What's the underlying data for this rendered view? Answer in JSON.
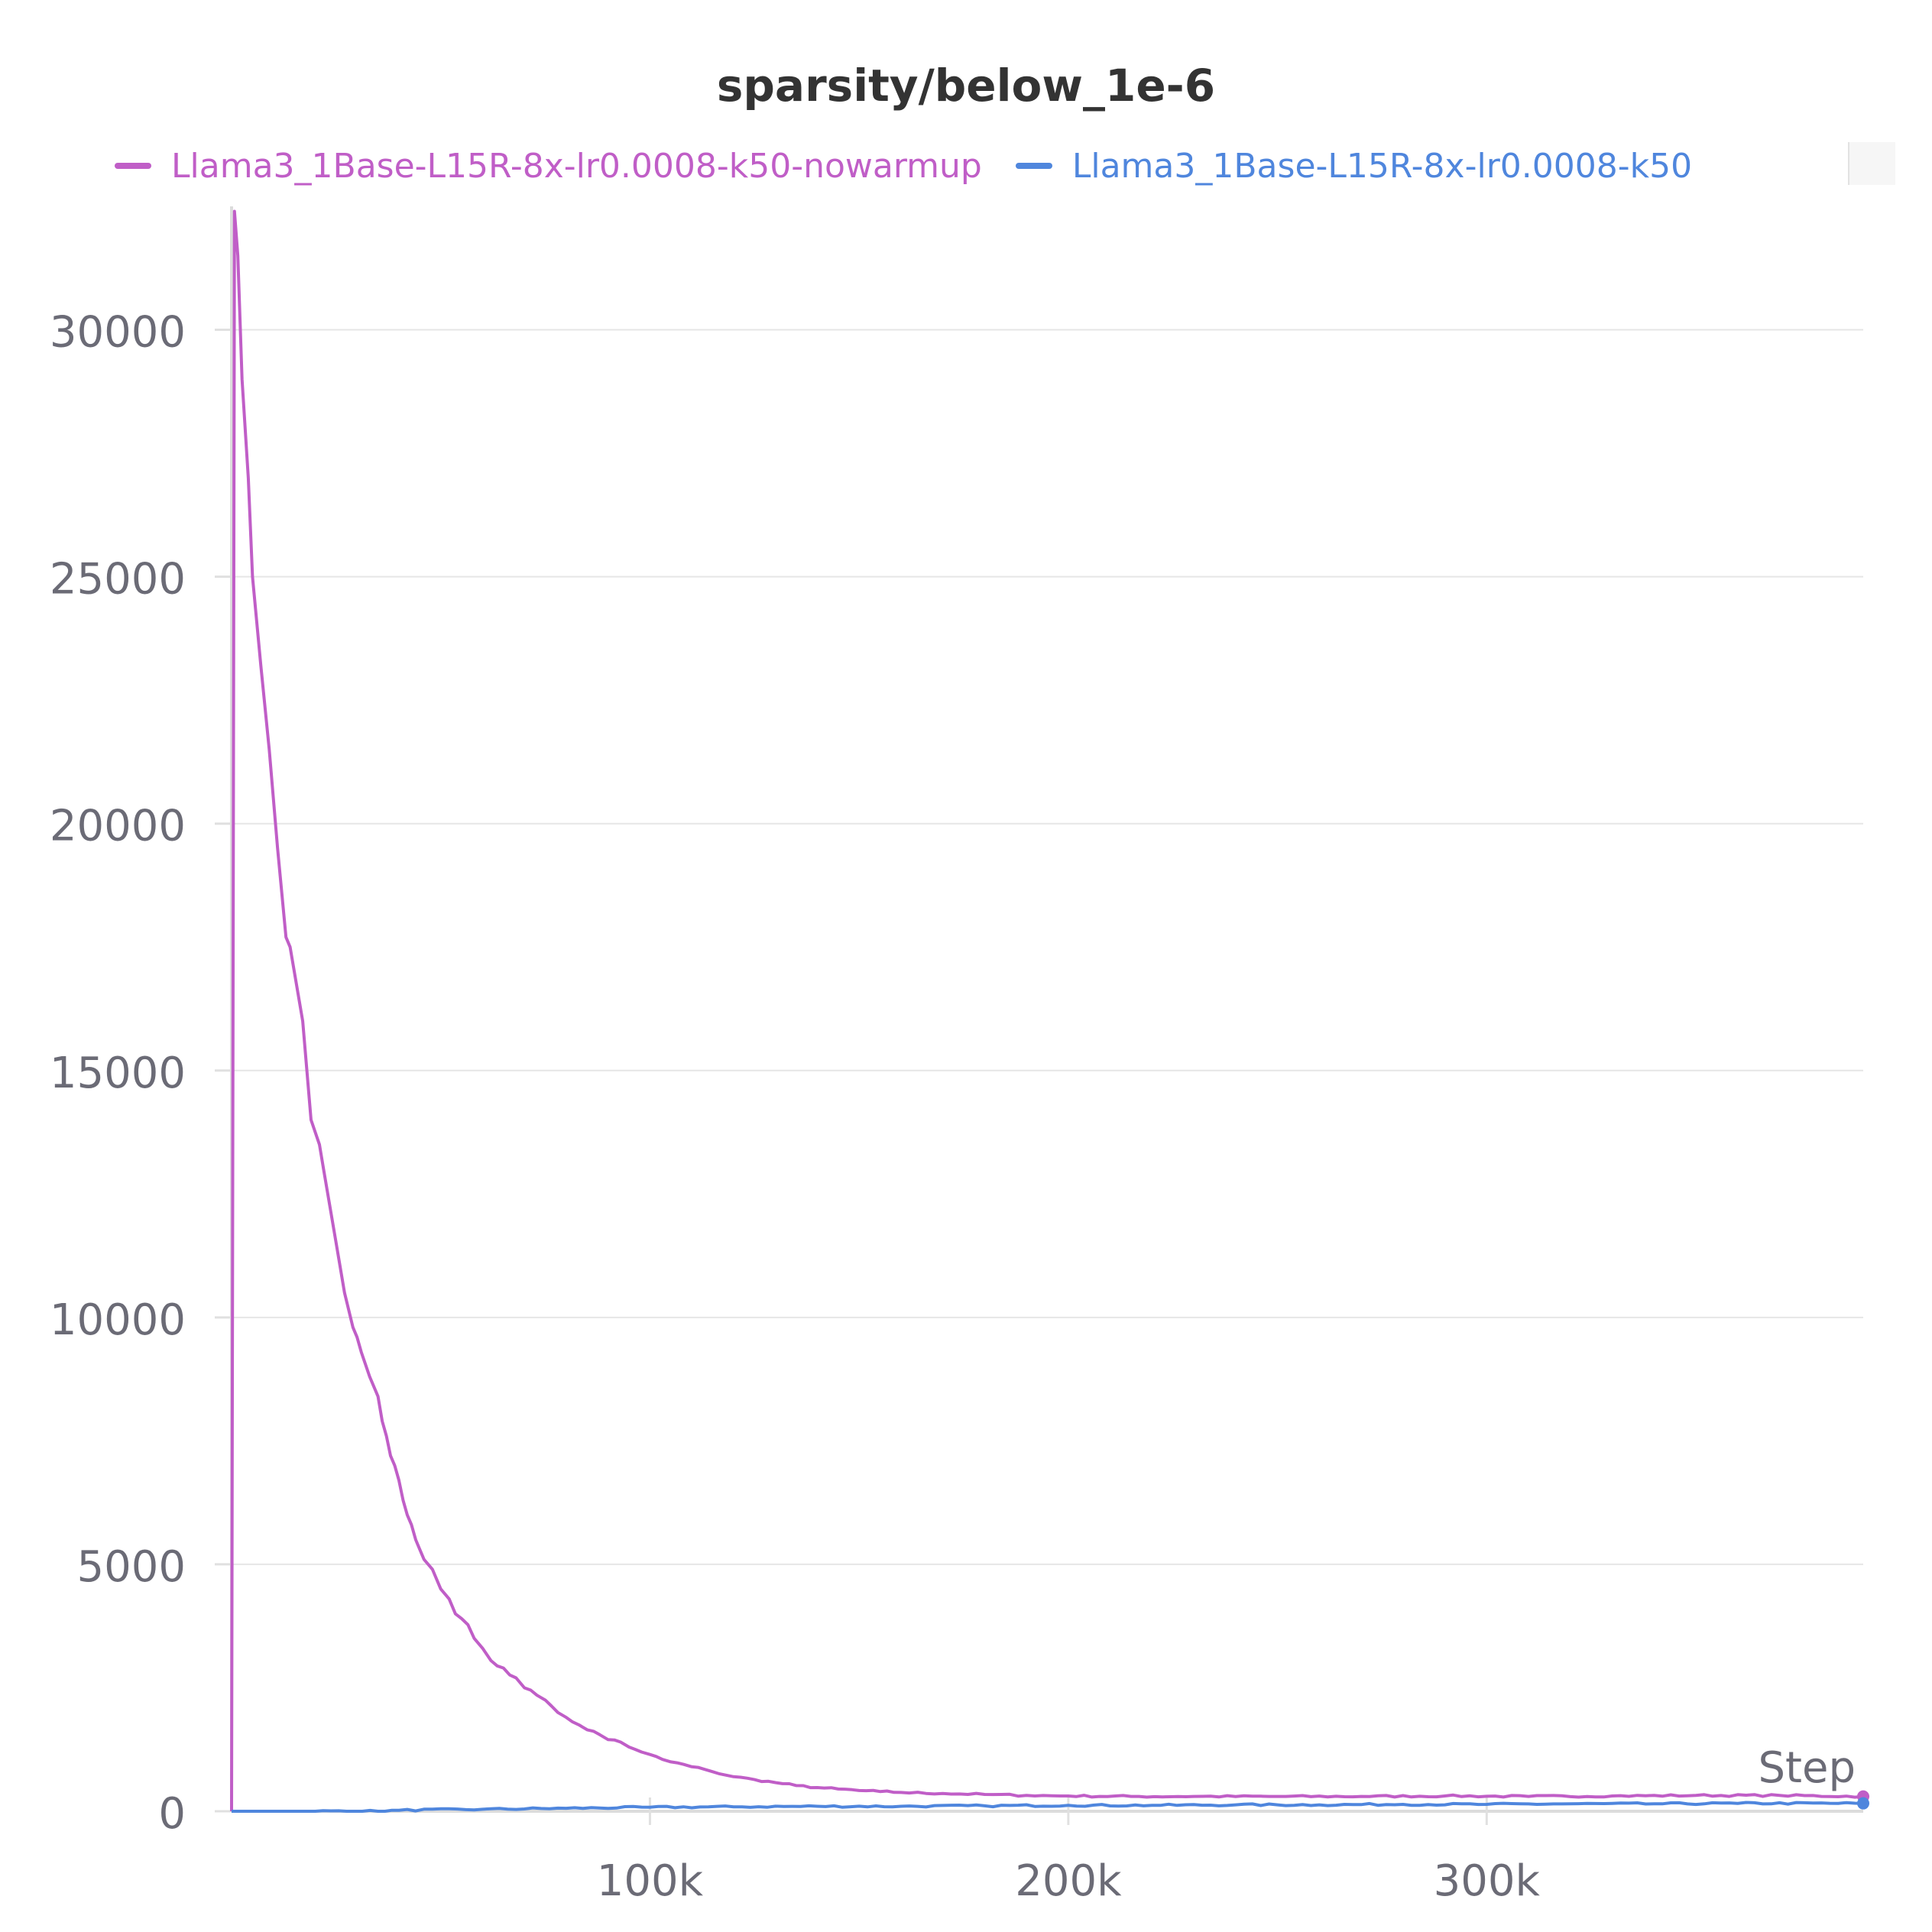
{
  "chart_data": {
    "type": "line",
    "title": "sparsity/below_1e-6",
    "xlabel": "Step",
    "ylabel": "",
    "xlim": [
      0,
      390000
    ],
    "ylim": [
      0,
      32500
    ],
    "x_ticks": [
      100000,
      200000,
      300000
    ],
    "x_tick_labels": [
      "100k",
      "200k",
      "300k"
    ],
    "y_ticks": [
      0,
      5000,
      10000,
      15000,
      20000,
      25000,
      30000
    ],
    "y_tick_labels": [
      "0",
      "5000",
      "10000",
      "15000",
      "20000",
      "25000",
      "30000"
    ],
    "grid": true,
    "legend_position": "top",
    "series": [
      {
        "name": "Llama3_1Base-L15R-8x-lr0.0008-k50-nowarmup",
        "color": "#c05ec7",
        "x": [
          0,
          700,
          1500,
          2500,
          4000,
          5000,
          7000,
          9000,
          11000,
          13000,
          14000,
          15000,
          17000,
          19000,
          21000,
          22000,
          23000,
          25000,
          27000,
          29000,
          30000,
          31000,
          33000,
          35000,
          36000,
          37000,
          38000,
          39000,
          40000,
          41000,
          42000,
          43000,
          44000,
          45000,
          46000,
          48000,
          50000,
          52000,
          55000,
          58000,
          60000,
          62000,
          65000,
          68000,
          70000,
          73000,
          75000,
          78000,
          80000,
          83000,
          85000,
          88000,
          90000,
          93000,
          95000,
          98000,
          100000,
          103000,
          105000,
          108000,
          110000,
          113000,
          115000,
          120000,
          125000,
          130000,
          135000,
          140000,
          145000,
          150000,
          155000,
          160000,
          170000,
          180000,
          190000,
          200000,
          215000,
          230000,
          250000,
          270000,
          290000,
          310000,
          330000,
          350000,
          370000,
          390000
        ],
        "y": [
          0,
          32400,
          31500,
          29000,
          27000,
          25000,
          23200,
          21500,
          19500,
          17700,
          17500,
          17000,
          16000,
          14000,
          13500,
          13000,
          12500,
          11500,
          10500,
          9800,
          9600,
          9300,
          8800,
          8400,
          7900,
          7600,
          7200,
          7000,
          6700,
          6300,
          6000,
          5800,
          5500,
          5300,
          5100,
          4900,
          4500,
          4300,
          3900,
          3500,
          3300,
          3050,
          2900,
          2700,
          2500,
          2350,
          2250,
          2000,
          1900,
          1750,
          1650,
          1550,
          1450,
          1400,
          1300,
          1200,
          1150,
          1050,
          1000,
          950,
          900,
          850,
          800,
          700,
          640,
          580,
          520,
          480,
          450,
          420,
          400,
          380,
          360,
          340,
          320,
          310,
          300,
          300,
          300,
          300,
          310,
          300,
          310,
          320,
          320,
          300
        ]
      },
      {
        "name": "Llama3_1Base-L15R-8x-lr0.0008-k50",
        "color": "#4f86dd",
        "x": [
          0,
          20000,
          35000,
          40000,
          60000,
          80000,
          100000,
          120000,
          140000,
          160000,
          180000,
          200000,
          220000,
          240000,
          260000,
          280000,
          300000,
          320000,
          340000,
          360000,
          390000
        ],
        "y": [
          0,
          0,
          0,
          20,
          40,
          60,
          80,
          90,
          100,
          100,
          110,
          120,
          120,
          130,
          130,
          140,
          140,
          150,
          150,
          160,
          160
        ]
      }
    ]
  }
}
